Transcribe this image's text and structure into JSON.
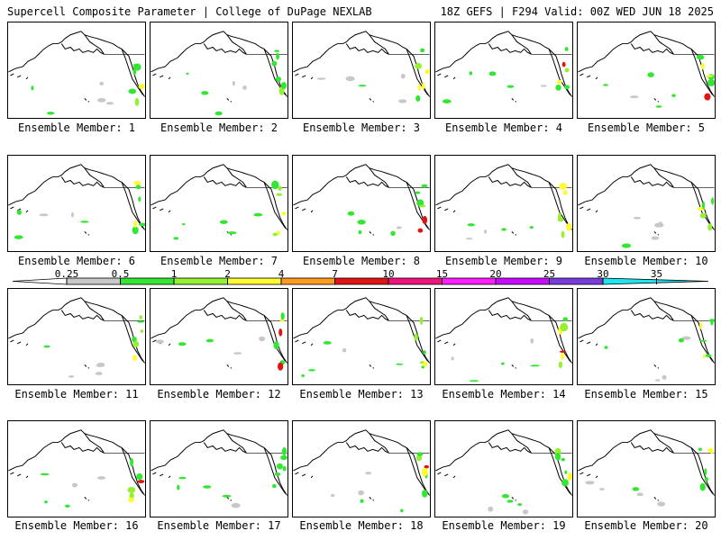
{
  "header": {
    "left_title": "Supercell Composite Parameter | College of DuPage NEXLAB",
    "right_title": "18Z GEFS | F294 Valid: 00Z WED JUN 18 2025"
  },
  "caption_prefix": "Ensemble Member:",
  "members": [
    1,
    2,
    3,
    4,
    5,
    6,
    7,
    8,
    9,
    10,
    11,
    12,
    13,
    14,
    15,
    16,
    17,
    18,
    19,
    20
  ],
  "colorbar": {
    "labels": [
      "0.25",
      "0.5",
      "1",
      "2",
      "4",
      "7",
      "10",
      "15",
      "20",
      "25",
      "30",
      "35"
    ],
    "colors": [
      "#ffffff",
      "#c8c8c8",
      "#32e632",
      "#96f032",
      "#fffa32",
      "#ff9b1e",
      "#e11414",
      "#f0147d",
      "#ff1eff",
      "#c80aff",
      "#783cdc",
      "#1ee6f0"
    ]
  }
}
